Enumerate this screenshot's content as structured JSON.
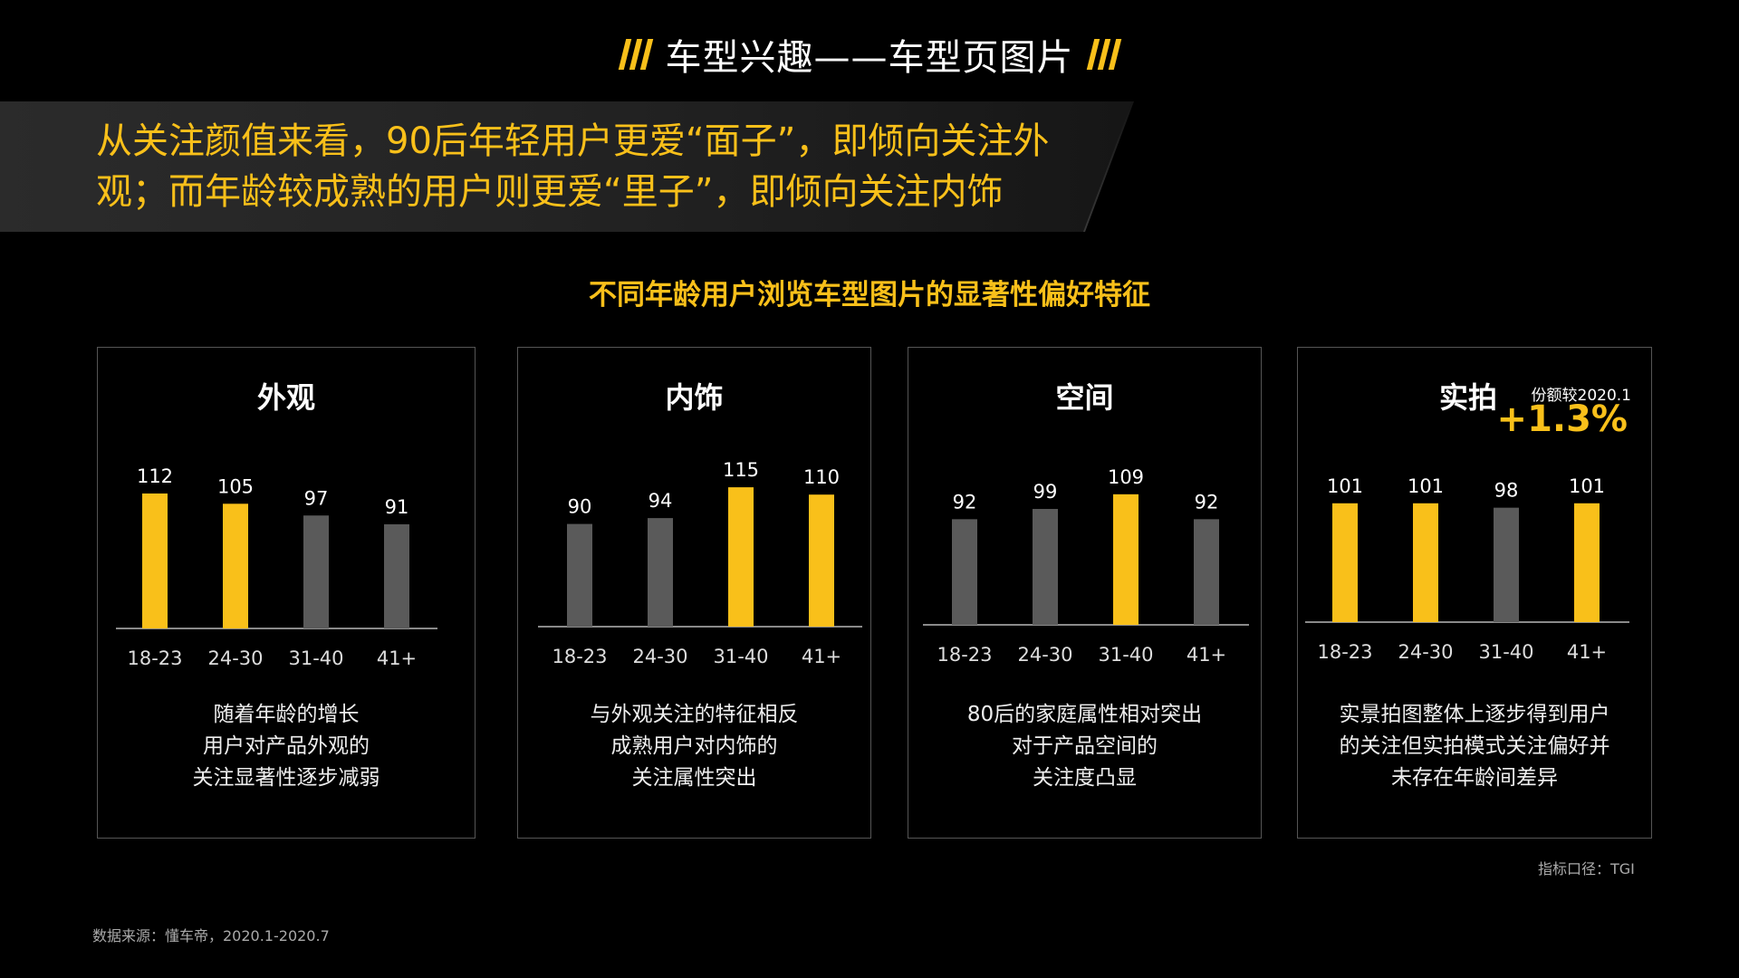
{
  "header": {
    "title": "车型兴趣——车型页图片"
  },
  "banner": {
    "line1": "从关注颜值来看，90后年轻用户更爱“面子”，即倾向关注外",
    "line2": "观；而年龄较成熟的用户则更爱“里子”，即倾向关注内饰"
  },
  "subtitle": "不同年龄用户浏览车型图片的显著性偏好特征",
  "colors": {
    "highlight": "#f9c01a",
    "normal": "#5a5a5a",
    "axis": "#8a8a8a",
    "label": "#ffffff"
  },
  "chart_data": [
    {
      "type": "bar",
      "title": "外观",
      "categories": [
        "18-23",
        "24-30",
        "31-40",
        "41+"
      ],
      "values": [
        112,
        105,
        97,
        91
      ],
      "highlight": [
        true,
        true,
        false,
        false
      ],
      "description": [
        "随着年龄的增长",
        "用户对产品外观的",
        "关注显著性逐步减弱"
      ]
    },
    {
      "type": "bar",
      "title": "内饰",
      "categories": [
        "18-23",
        "24-30",
        "31-40",
        "41+"
      ],
      "values": [
        90,
        94,
        115,
        110
      ],
      "highlight": [
        false,
        false,
        true,
        true
      ],
      "description": [
        "与外观关注的特征相反",
        "成熟用户对内饰的",
        "关注属性突出"
      ]
    },
    {
      "type": "bar",
      "title": "空间",
      "categories": [
        "18-23",
        "24-30",
        "31-40",
        "41+"
      ],
      "values": [
        92,
        99,
        109,
        92
      ],
      "highlight": [
        false,
        false,
        true,
        false
      ],
      "description": [
        "80后的家庭属性相对突出",
        "对于产品空间的",
        "关注度凸显"
      ]
    },
    {
      "type": "bar",
      "title": "实拍",
      "categories": [
        "18-23",
        "24-30",
        "31-40",
        "41+"
      ],
      "values": [
        101,
        101,
        98,
        101
      ],
      "highlight": [
        true,
        true,
        false,
        true
      ],
      "description": [
        "实景拍图整体上逐步得到用户",
        "的关注但实拍模式关注偏好并",
        "未存在年龄间差异"
      ],
      "share_note": "份额较2020.1",
      "share_value": "+1.3%"
    }
  ],
  "footer": {
    "metric_note": "指标口径：TGI",
    "source_note": "数据来源：懂车帝，2020.1-2020.7"
  }
}
